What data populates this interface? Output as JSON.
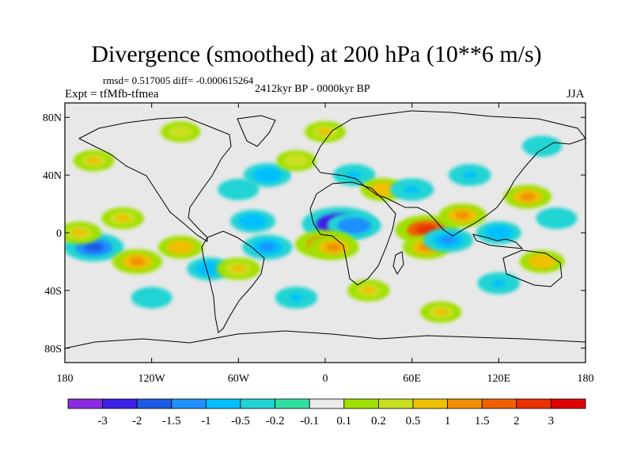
{
  "title": "Divergence (smoothed) at 200 hPa (10**6 m/s)",
  "stats": "rmsd= 0.517005 diff= -0.000615264",
  "experiment": "Expt = tfMfb-tfmea",
  "period": "2412kyr BP - 0000kyr BP",
  "season": "JJA",
  "map_data": {
    "type": "filled-contour-map",
    "projection": "cylindrical-equidistant",
    "lon_range": [
      -180,
      180
    ],
    "lat_range": [
      -90,
      90
    ],
    "lat_ticks": [
      "80N",
      "40N",
      "0",
      "40S",
      "80S"
    ],
    "lat_tick_values": [
      80,
      40,
      0,
      -40,
      -80
    ],
    "lon_ticks": [
      "180",
      "120W",
      "60W",
      "0",
      "60E",
      "120E",
      "180"
    ],
    "lon_tick_values": [
      -180,
      -120,
      -60,
      0,
      60,
      120,
      180
    ],
    "background_color": "#e8e8e8",
    "fields": [
      {
        "lon": 10,
        "lat": 6,
        "value": -3.2
      },
      {
        "lon": 20,
        "lat": 5,
        "value": -1.5
      },
      {
        "lon": -50,
        "lat": 8,
        "value": -0.8
      },
      {
        "lon": -40,
        "lat": -10,
        "value": -1.2
      },
      {
        "lon": 0,
        "lat": -8,
        "value": 2.0
      },
      {
        "lon": 6,
        "lat": -10,
        "value": 1.2
      },
      {
        "lon": 70,
        "lat": 2,
        "value": 2.2
      },
      {
        "lon": 70,
        "lat": -10,
        "value": 1.0
      },
      {
        "lon": 85,
        "lat": -5,
        "value": -1.2
      },
      {
        "lon": 120,
        "lat": 0,
        "value": -0.8
      },
      {
        "lon": 95,
        "lat": 12,
        "value": 1.0
      },
      {
        "lon": -160,
        "lat": -10,
        "value": -2.0
      },
      {
        "lon": -170,
        "lat": 0,
        "value": 0.7
      },
      {
        "lon": -130,
        "lat": -20,
        "value": 1.2
      },
      {
        "lon": -140,
        "lat": 10,
        "value": 0.6
      },
      {
        "lon": -100,
        "lat": -10,
        "value": 0.8
      },
      {
        "lon": -80,
        "lat": -25,
        "value": -0.8
      },
      {
        "lon": -60,
        "lat": -25,
        "value": 0.7
      },
      {
        "lon": -60,
        "lat": 30,
        "value": -0.5
      },
      {
        "lon": -40,
        "lat": 40,
        "value": -1.0
      },
      {
        "lon": -20,
        "lat": 50,
        "value": 0.4
      },
      {
        "lon": 20,
        "lat": 40,
        "value": -0.6
      },
      {
        "lon": 40,
        "lat": 30,
        "value": 0.8
      },
      {
        "lon": 60,
        "lat": 30,
        "value": -0.7
      },
      {
        "lon": 100,
        "lat": 40,
        "value": -0.6
      },
      {
        "lon": 140,
        "lat": 25,
        "value": 1.0
      },
      {
        "lon": 160,
        "lat": 10,
        "value": -0.5
      },
      {
        "lon": 150,
        "lat": -20,
        "value": 0.8
      },
      {
        "lon": 120,
        "lat": -35,
        "value": -0.6
      },
      {
        "lon": 30,
        "lat": -40,
        "value": 0.6
      },
      {
        "lon": -20,
        "lat": -45,
        "value": -0.6
      },
      {
        "lon": 80,
        "lat": -55,
        "value": 0.5
      },
      {
        "lon": -120,
        "lat": -45,
        "value": -0.5
      },
      {
        "lon": 0,
        "lat": 70,
        "value": 0.5
      },
      {
        "lon": -100,
        "lat": 70,
        "value": 0.4
      },
      {
        "lon": 150,
        "lat": 60,
        "value": -0.4
      },
      {
        "lon": -160,
        "lat": 50,
        "value": 0.5
      }
    ]
  },
  "colorbar": {
    "labels": [
      "-3",
      "-2",
      "-1.5",
      "-1",
      "-0.5",
      "-0.2",
      "-0.1",
      "0.1",
      "0.2",
      "0.5",
      "1",
      "1.5",
      "2",
      "3"
    ],
    "levels": [
      -3,
      -2,
      -1.5,
      -1,
      -0.5,
      -0.2,
      -0.1,
      0.1,
      0.2,
      0.5,
      1,
      1.5,
      2,
      3
    ],
    "colors": [
      "#8a2be2",
      "#3c1fe6",
      "#1e5ae6",
      "#1e90ff",
      "#00bfff",
      "#20d4d4",
      "#30e0a0",
      "#ebebeb",
      "#a0e000",
      "#c8e020",
      "#f0c000",
      "#f09000",
      "#f06000",
      "#e83000",
      "#e00000"
    ]
  }
}
